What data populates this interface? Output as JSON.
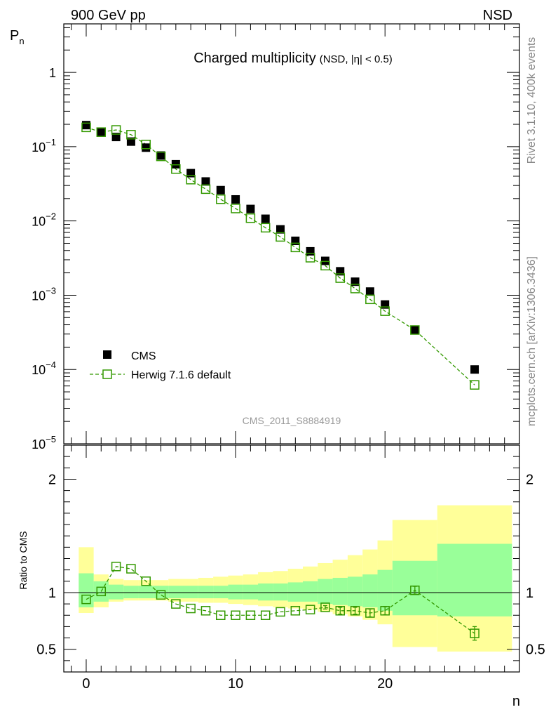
{
  "header": {
    "left": "900 GeV pp",
    "right": "NSD"
  },
  "side_labels": {
    "top": "Rivet 3.1.10,  400k events",
    "bottom": "mcplots.cern.ch [arXiv:1306.3436]"
  },
  "chart_data": [
    {
      "type": "scatter",
      "title": "Charged multiplicity",
      "subtitle": "(NSD, |η| < 0.5)",
      "ylabel": "P",
      "ylabel_sub": "n",
      "xlim": [
        -1.5,
        29
      ],
      "ylim": [
        1e-05,
        4.5
      ],
      "yscale": "log",
      "y_ticks": [
        {
          "value": 1,
          "label": "1",
          "exp": ""
        },
        {
          "value": 0.1,
          "label": "10",
          "exp": "−1"
        },
        {
          "value": 0.01,
          "label": "10",
          "exp": "−2"
        },
        {
          "value": 0.001,
          "label": "10",
          "exp": "−3"
        },
        {
          "value": 0.0001,
          "label": "10",
          "exp": "−4"
        },
        {
          "value": 1e-05,
          "label": "10",
          "exp": "−5"
        }
      ],
      "watermark": "CMS_2011_S8884919",
      "legend_position": "bottom-left",
      "series": [
        {
          "name": "CMS",
          "color": "#000000",
          "marker": "filled-square",
          "x": [
            0,
            1,
            2,
            3,
            4,
            5,
            6,
            7,
            8,
            9,
            10,
            11,
            12,
            13,
            14,
            15,
            16,
            17,
            18,
            19,
            20,
            22,
            26
          ],
          "y": [
            0.195,
            0.155,
            0.135,
            0.117,
            0.097,
            0.076,
            0.058,
            0.044,
            0.034,
            0.026,
            0.0195,
            0.0145,
            0.0107,
            0.0077,
            0.0054,
            0.0039,
            0.0029,
            0.0021,
            0.00152,
            0.00112,
            0.00075,
            0.00034,
            0.0001
          ]
        },
        {
          "name": "Herwig 7.1.6 default",
          "color": "#339900",
          "marker": "open-square",
          "line": "dashed",
          "x": [
            0,
            1,
            2,
            3,
            4,
            5,
            6,
            7,
            8,
            9,
            10,
            11,
            12,
            13,
            14,
            15,
            16,
            17,
            18,
            19,
            20,
            22,
            26
          ],
          "y": [
            0.182,
            0.157,
            0.168,
            0.145,
            0.107,
            0.074,
            0.05,
            0.036,
            0.0268,
            0.0196,
            0.0147,
            0.0109,
            0.0081,
            0.0061,
            0.0044,
            0.0032,
            0.0025,
            0.0017,
            0.00123,
            0.00088,
            0.00061,
            0.00034,
            6.2e-05
          ]
        }
      ]
    },
    {
      "type": "scatter",
      "ylabel": "Ratio to CMS",
      "xlabel": "n",
      "xlim": [
        -1.5,
        29
      ],
      "ylim": [
        0.3,
        2.3
      ],
      "x_ticks": [
        0,
        10,
        20
      ],
      "y_ticks": [
        0.5,
        1,
        2
      ],
      "reference_line": 1,
      "bands": {
        "edges": [
          -0.5,
          0.5,
          1.5,
          2.5,
          3.5,
          4.5,
          5.5,
          6.5,
          7.5,
          8.5,
          9.5,
          10.5,
          11.5,
          12.5,
          13.5,
          14.5,
          15.5,
          16.5,
          17.5,
          18.5,
          19.5,
          20.5,
          23.5,
          28.5
        ],
        "inner_color": "#99ff99",
        "outer_color": "#ffff99",
        "inner": [
          [
            0.87,
            1.17
          ],
          [
            0.92,
            1.1
          ],
          [
            0.94,
            1.07
          ],
          [
            0.95,
            1.06
          ],
          [
            0.95,
            1.06
          ],
          [
            0.95,
            1.06
          ],
          [
            0.95,
            1.06
          ],
          [
            0.95,
            1.06
          ],
          [
            0.95,
            1.06
          ],
          [
            0.95,
            1.06
          ],
          [
            0.94,
            1.07
          ],
          [
            0.94,
            1.07
          ],
          [
            0.93,
            1.08
          ],
          [
            0.93,
            1.08
          ],
          [
            0.92,
            1.09
          ],
          [
            0.92,
            1.1
          ],
          [
            0.9,
            1.12
          ],
          [
            0.89,
            1.13
          ],
          [
            0.88,
            1.14
          ],
          [
            0.87,
            1.16
          ],
          [
            0.84,
            1.2
          ],
          [
            0.8,
            1.28
          ],
          [
            0.79,
            1.43
          ]
        ],
        "outer": [
          [
            0.82,
            1.4
          ],
          [
            0.87,
            1.16
          ],
          [
            0.92,
            1.12
          ],
          [
            0.93,
            1.11
          ],
          [
            0.93,
            1.11
          ],
          [
            0.93,
            1.11
          ],
          [
            0.92,
            1.12
          ],
          [
            0.92,
            1.12
          ],
          [
            0.91,
            1.13
          ],
          [
            0.91,
            1.14
          ],
          [
            0.9,
            1.15
          ],
          [
            0.89,
            1.16
          ],
          [
            0.88,
            1.18
          ],
          [
            0.87,
            1.19
          ],
          [
            0.86,
            1.21
          ],
          [
            0.85,
            1.23
          ],
          [
            0.83,
            1.26
          ],
          [
            0.81,
            1.29
          ],
          [
            0.79,
            1.33
          ],
          [
            0.76,
            1.38
          ],
          [
            0.72,
            1.46
          ],
          [
            0.52,
            1.64
          ],
          [
            0.48,
            1.77
          ]
        ]
      },
      "series": [
        {
          "name": "Herwig 7.1.6 default",
          "color": "#339900",
          "marker": "open-square",
          "line": "dashed",
          "x": [
            0,
            1,
            2,
            3,
            4,
            5,
            6,
            7,
            8,
            9,
            10,
            11,
            12,
            13,
            14,
            15,
            16,
            17,
            18,
            19,
            20,
            22,
            26
          ],
          "y": [
            0.94,
            1.01,
            1.23,
            1.21,
            1.1,
            0.98,
            0.9,
            0.86,
            0.84,
            0.8,
            0.8,
            0.8,
            0.8,
            0.83,
            0.84,
            0.85,
            0.87,
            0.84,
            0.84,
            0.82,
            0.84,
            1.02,
            0.64
          ],
          "err": [
            0,
            0,
            0,
            0,
            0,
            0,
            0,
            0,
            0,
            0,
            0,
            0,
            0,
            0,
            0,
            0,
            0.015,
            0.03,
            0.03,
            0.035,
            0.035,
            0.035,
            0.06
          ]
        }
      ]
    }
  ]
}
